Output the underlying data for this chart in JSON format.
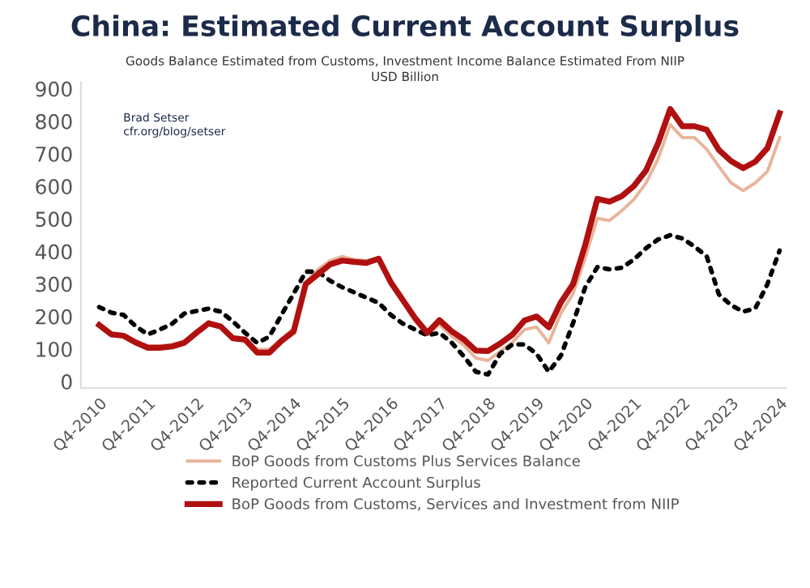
{
  "chart_data": {
    "type": "line",
    "title": "China: Estimated Current Account Surplus",
    "subtitle": "Goods Balance Estimated from Customs, Investment Income Balance Estimated From NIIP\nUSD Billion",
    "annotations": [
      "Brad Setser",
      "cfr.org/blog/setser"
    ],
    "categories": [
      "Q4-2010",
      null,
      null,
      null,
      "Q4-2011",
      null,
      null,
      null,
      "Q4-2012",
      null,
      null,
      null,
      "Q4-2013",
      null,
      null,
      null,
      "Q4-2014",
      null,
      null,
      null,
      "Q4-2015",
      null,
      null,
      null,
      "Q4-2016",
      null,
      null,
      null,
      "Q4-2017",
      null,
      null,
      null,
      "Q4-2018",
      null,
      null,
      null,
      "Q4-2019",
      null,
      null,
      null,
      "Q4-2020",
      null,
      null,
      null,
      "Q4-2021",
      null,
      null,
      null,
      "Q4-2022",
      null,
      null,
      null,
      "Q4-2023",
      null,
      null,
      null,
      "Q4-2024"
    ],
    "series": [
      {
        "name": "BoP Goods from Customs Plus Services Balance",
        "color": "#e8b49a",
        "line_style": "solid",
        "values": [
          174,
          145,
          141,
          125,
          110,
          110,
          114,
          124,
          155,
          184,
          174,
          138,
          134,
          99,
          99,
          130,
          164,
          305,
          345,
          372,
          385,
          375,
          372,
          380,
          305,
          245,
          185,
          145,
          175,
          140,
          112,
          72,
          65,
          92,
          120,
          160,
          168,
          119,
          210,
          270,
          380,
          502,
          495,
          525,
          560,
          610,
          685,
          790,
          750,
          750,
          714,
          661,
          611,
          587,
          611,
          646,
          750
        ]
      },
      {
        "name": "Reported Current Account Surplus",
        "color": "#000000",
        "line_style": "dotted",
        "values": [
          229,
          212,
          205,
          170,
          145,
          160,
          178,
          209,
          217,
          224,
          215,
          185,
          150,
          119,
          138,
          205,
          270,
          338,
          338,
          310,
          290,
          274,
          258,
          242,
          205,
          178,
          160,
          142,
          150,
          120,
          78,
          30,
          22,
          85,
          114,
          114,
          85,
          30,
          80,
          180,
          290,
          352,
          345,
          350,
          375,
          410,
          437,
          450,
          440,
          415,
          385,
          268,
          235,
          215,
          225,
          300,
          403
        ]
      },
      {
        "name": "BoP Goods from Customs, Services and Investment from NIIP",
        "color": "#b01010",
        "line_style": "solid",
        "values": [
          174,
          145,
          141,
          120,
          104,
          104,
          108,
          119,
          150,
          179,
          169,
          133,
          129,
          89,
          89,
          125,
          154,
          300,
          330,
          360,
          372,
          368,
          365,
          378,
          305,
          250,
          195,
          150,
          189,
          155,
          130,
          95,
          94,
          117,
          144,
          188,
          200,
          167,
          244,
          300,
          420,
          562,
          553,
          570,
          601,
          649,
          733,
          838,
          785,
          785,
          774,
          712,
          678,
          656,
          676,
          718,
          825
        ]
      }
    ],
    "ylim": [
      -20,
      920
    ],
    "yticks": [
      0,
      100,
      200,
      300,
      400,
      500,
      600,
      700,
      800,
      900
    ],
    "grid": false,
    "legend": "bottom",
    "marker": "none"
  }
}
